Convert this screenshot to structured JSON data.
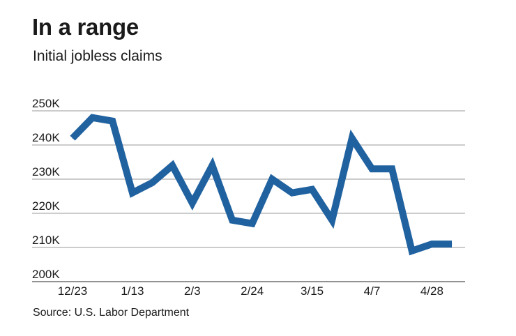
{
  "title": "In a range",
  "subtitle": "Initial jobless claims",
  "source": "Source: U.S. Labor Department",
  "colors": {
    "line": "#2062a0",
    "grid": "#9a9a9a"
  },
  "chart_data": {
    "type": "line",
    "title": "In a range",
    "subtitle": "Initial jobless claims",
    "ylim": [
      200000,
      250000
    ],
    "ytick_values": [
      200000,
      210000,
      220000,
      230000,
      240000,
      250000
    ],
    "ytick_labels": [
      "200K",
      "210K",
      "220K",
      "230K",
      "240K",
      "250K"
    ],
    "xtick_labels": [
      "12/23",
      "1/13",
      "2/3",
      "2/24",
      "3/15",
      "4/7",
      "4/28"
    ],
    "xtick_indices": [
      0,
      3,
      6,
      9,
      12,
      15,
      18
    ],
    "grid": true,
    "series": [
      {
        "values": [
          242000,
          248000,
          247000,
          226000,
          229000,
          234000,
          223000,
          234000,
          218000,
          217000,
          230000,
          226000,
          227000,
          218000,
          242000,
          233000,
          233000,
          209000,
          211000,
          211000
        ]
      }
    ]
  }
}
